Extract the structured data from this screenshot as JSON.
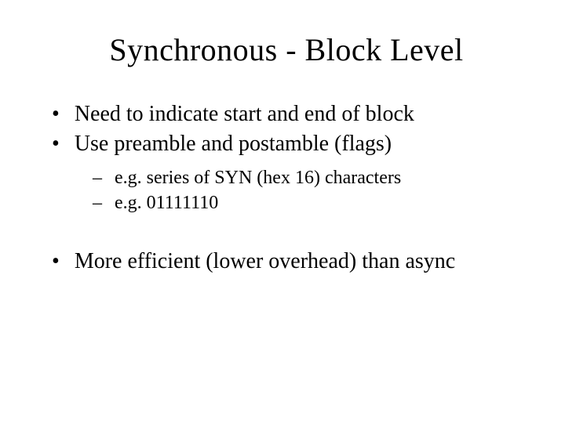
{
  "title": "Synchronous - Block Level",
  "bullets": {
    "b1": "Need to indicate start and end of block",
    "b2": "Use preamble and postamble (flags)",
    "b2_sub1": "e.g. series of SYN (hex 16) characters",
    "b2_sub2": "e.g. 01111110",
    "b3": "More efficient (lower overhead) than async"
  },
  "style": {
    "background_color": "#ffffff",
    "text_color": "#000000",
    "font_family": "Times New Roman",
    "title_fontsize": 40,
    "body_fontsize": 28,
    "sub_fontsize": 24
  }
}
